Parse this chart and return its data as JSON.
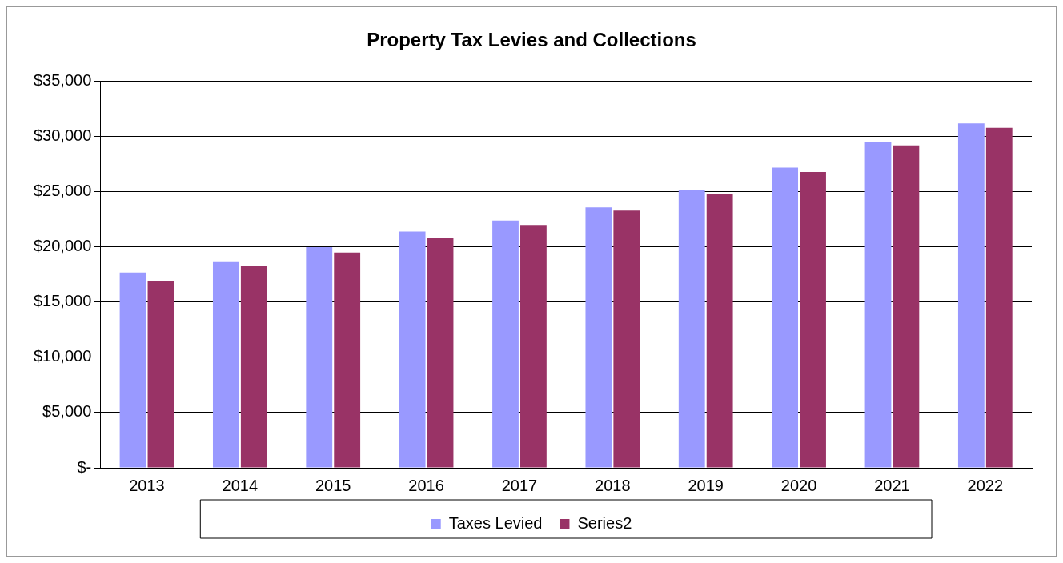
{
  "chart_data": {
    "type": "bar",
    "title": "Property Tax Levies and Collections",
    "categories": [
      "2013",
      "2014",
      "2015",
      "2016",
      "2017",
      "2018",
      "2019",
      "2020",
      "2021",
      "2022"
    ],
    "series": [
      {
        "name": "Taxes Levied",
        "color": "#9999ff",
        "values": [
          17700,
          18700,
          20000,
          21400,
          22400,
          23600,
          25200,
          27200,
          29500,
          31200
        ]
      },
      {
        "name": "Series2",
        "color": "#993366",
        "values": [
          16900,
          18300,
          19500,
          20800,
          22000,
          23300,
          24800,
          26800,
          29200,
          30800
        ]
      }
    ],
    "ylim": [
      0,
      35000
    ],
    "yticks": [
      {
        "value": 0,
        "label": "$-"
      },
      {
        "value": 5000,
        "label": "$5,000"
      },
      {
        "value": 10000,
        "label": "$10,000"
      },
      {
        "value": 15000,
        "label": "$15,000"
      },
      {
        "value": 20000,
        "label": "$20,000"
      },
      {
        "value": 25000,
        "label": "$25,000"
      },
      {
        "value": 30000,
        "label": "$30,000"
      },
      {
        "value": 35000,
        "label": "$35,000"
      }
    ],
    "grid": "y",
    "legend": "bottom"
  }
}
